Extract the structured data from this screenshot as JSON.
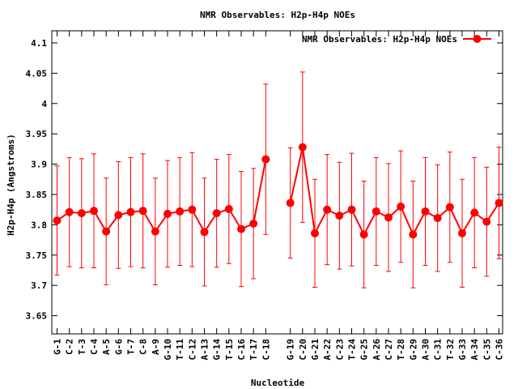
{
  "chart_data": {
    "type": "line",
    "title": "NMR Observables: H2p-H4p NOEs",
    "xlabel": "Nucleotide",
    "ylabel": "H2p-H4p (Angstroms)",
    "ylim": [
      3.62,
      4.12
    ],
    "yticks": [
      3.65,
      3.7,
      3.75,
      3.8,
      3.85,
      3.9,
      3.95,
      4,
      4.05,
      4.1
    ],
    "ytick_labels": [
      "3.65",
      "3.7",
      "3.75",
      "3.8",
      "3.85",
      "3.9",
      "3.95",
      "4",
      "4.05",
      "4.1"
    ],
    "legend": {
      "position": "top-right",
      "entries": [
        "NMR Observables: H2p-H4p NOEs"
      ]
    },
    "grid": false,
    "color": "#ff0000",
    "series": [
      {
        "name": "NMR Observables: H2p-H4p NOEs",
        "segments": [
          [
            {
              "x": "G-1",
              "y": 3.807,
              "err": 0.09
            },
            {
              "x": "C-2",
              "y": 3.821,
              "err": 0.09
            },
            {
              "x": "T-3",
              "y": 3.819,
              "err": 0.09
            },
            {
              "x": "C-4",
              "y": 3.823,
              "err": 0.094
            },
            {
              "x": "A-5",
              "y": 3.789,
              "err": 0.088
            },
            {
              "x": "G-6",
              "y": 3.816,
              "err": 0.088
            },
            {
              "x": "T-7",
              "y": 3.821,
              "err": 0.09
            },
            {
              "x": "C-8",
              "y": 3.823,
              "err": 0.094
            },
            {
              "x": "A-9",
              "y": 3.789,
              "err": 0.088
            },
            {
              "x": "G-10",
              "y": 3.818,
              "err": 0.088
            },
            {
              "x": "T-11",
              "y": 3.822,
              "err": 0.089
            },
            {
              "x": "C-12",
              "y": 3.825,
              "err": 0.094
            },
            {
              "x": "A-13",
              "y": 3.788,
              "err": 0.089
            },
            {
              "x": "G-14",
              "y": 3.819,
              "err": 0.089
            },
            {
              "x": "T-15",
              "y": 3.826,
              "err": 0.09
            },
            {
              "x": "C-16",
              "y": 3.793,
              "err": 0.095
            },
            {
              "x": "T-17",
              "y": 3.802,
              "err": 0.091
            },
            {
              "x": "C-18",
              "y": 3.908,
              "err": 0.124
            }
          ],
          [
            {
              "x": "G-19",
              "y": 3.836,
              "err": 0.091
            },
            {
              "x": "C-20",
              "y": 3.928,
              "err": 0.124
            },
            {
              "x": "G-21",
              "y": 3.786,
              "err": 0.089
            },
            {
              "x": "A-22",
              "y": 3.825,
              "err": 0.091
            },
            {
              "x": "C-23",
              "y": 3.815,
              "err": 0.088
            },
            {
              "x": "T-24",
              "y": 3.825,
              "err": 0.093
            },
            {
              "x": "G-25",
              "y": 3.784,
              "err": 0.088
            },
            {
              "x": "A-26",
              "y": 3.822,
              "err": 0.089
            },
            {
              "x": "C-27",
              "y": 3.812,
              "err": 0.089
            },
            {
              "x": "T-28",
              "y": 3.83,
              "err": 0.092
            },
            {
              "x": "G-29",
              "y": 3.784,
              "err": 0.088
            },
            {
              "x": "A-30",
              "y": 3.822,
              "err": 0.089
            },
            {
              "x": "C-31",
              "y": 3.811,
              "err": 0.088
            },
            {
              "x": "T-32",
              "y": 3.829,
              "err": 0.091
            },
            {
              "x": "G-33",
              "y": 3.786,
              "err": 0.089
            },
            {
              "x": "A-34",
              "y": 3.82,
              "err": 0.091
            },
            {
              "x": "C-35",
              "y": 3.805,
              "err": 0.09
            },
            {
              "x": "C-36",
              "y": 3.836,
              "err": 0.092
            }
          ]
        ]
      }
    ]
  }
}
